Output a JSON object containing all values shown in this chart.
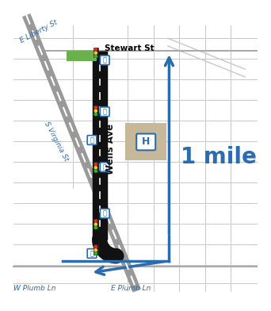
{
  "bg_color": "#ffffff",
  "grid_color": "#c8c8c8",
  "wells_ave_color": "#111111",
  "virginia_st_color": "#888888",
  "arrow_color": "#2b6cb0",
  "green_patch_color": "#6ab04c",
  "hospital_bg_color": "#c8b89a",
  "hospital_text_color": "#2b6cb0",
  "bus_color": "#2b6cb0",
  "street_label_color": "#2b6cb0",
  "label_stewart": "Stewart St",
  "label_liberty": "E Liberty St",
  "label_virginia": "S Virginia St",
  "label_wplumb": "W Plumb Ln",
  "label_eplumb": "E Plumb Ln",
  "label_wells": "Wells Ave",
  "label_mile": "1 mile",
  "figsize": [
    3.42,
    3.92
  ],
  "dpi": 100,
  "xlim": [
    0,
    10
  ],
  "ylim": [
    0,
    11.5
  ]
}
